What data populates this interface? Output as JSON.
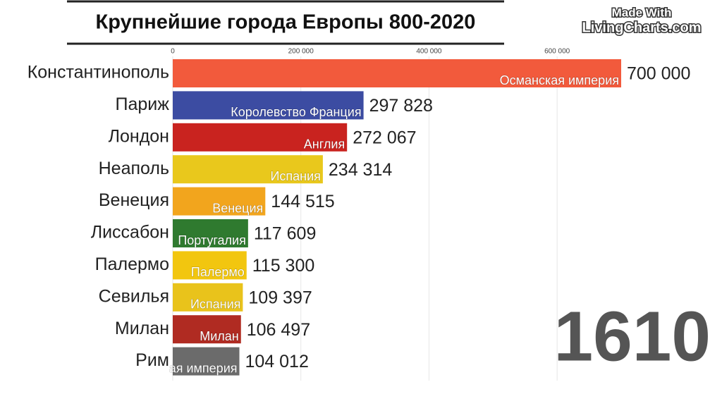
{
  "chart_data": {
    "type": "bar",
    "orientation": "horizontal",
    "title": "Крупнейшие города Европы 800-2020",
    "watermark": [
      "Made With",
      "LivingCharts.com"
    ],
    "year": "1610",
    "categories": [
      "Константинополь",
      "Париж",
      "Лондон",
      "Неаполь",
      "Венеция",
      "Лиссабон",
      "Палермо",
      "Севилья",
      "Милан",
      "Рим"
    ],
    "values": [
      700000,
      297828,
      272067,
      234314,
      144515,
      117609,
      115300,
      109397,
      106497,
      104012
    ],
    "value_labels": [
      "700 000",
      "297 828",
      "272 067",
      "234 314",
      "144 515",
      "117 609",
      "115 300",
      "109 397",
      "106 497",
      "104 012"
    ],
    "bar_labels": [
      "Османская империя",
      "Королевство Франция",
      "Англия",
      "Испания",
      "Венеция",
      "Португалия",
      "Палермо",
      "Испания",
      "Милан",
      "ая империя"
    ],
    "colors": [
      "#f25a3c",
      "#3c4ca2",
      "#c9231f",
      "#e9c81c",
      "#f2a51d",
      "#2f7a2f",
      "#f2c60f",
      "#e9c31b",
      "#b02b22",
      "#6b6b6b"
    ],
    "xlim": [
      0,
      700000
    ],
    "xticks": [
      0,
      {
        "value": 200000,
        "label": "200 000"
      },
      {
        "value": 400000,
        "label": "400 000"
      },
      {
        "value": 600000,
        "label": "600 000"
      }
    ],
    "grid": true
  }
}
